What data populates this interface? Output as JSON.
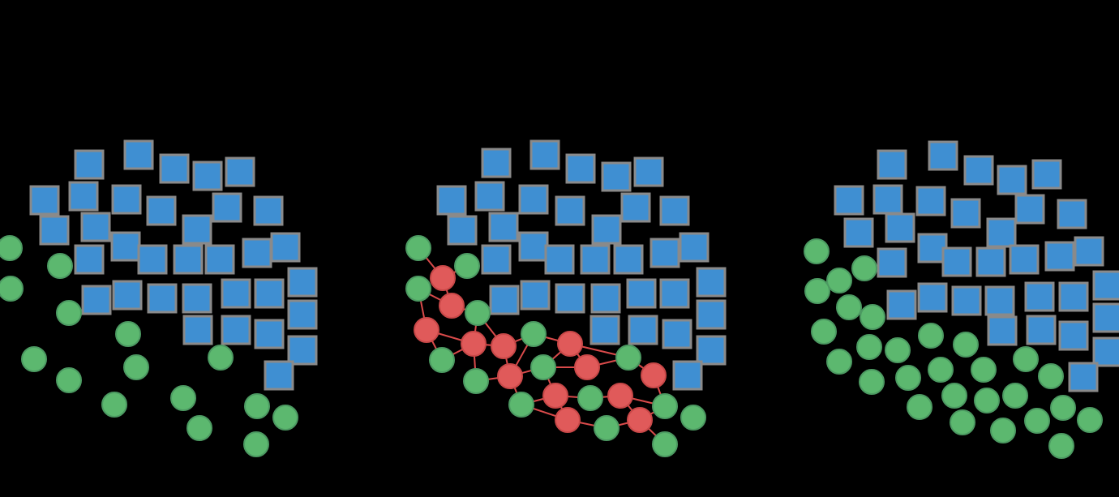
{
  "colors": {
    "background": "#000000",
    "square_fill": "#3f8fd2",
    "square_border": "#8a8a8a",
    "green_fill": "#5cb86f",
    "red_fill": "#e05a5a",
    "edge": "#d94a4a"
  },
  "panels": [
    {
      "name": "panel-left",
      "squares": [
        [
          110,
          203
        ],
        [
          171,
          191
        ],
        [
          215,
          208
        ],
        [
          256,
          217
        ],
        [
          296,
          212
        ],
        [
          55,
          247
        ],
        [
          103,
          242
        ],
        [
          156,
          246
        ],
        [
          199,
          260
        ],
        [
          280,
          256
        ],
        [
          331,
          260
        ],
        [
          67,
          284
        ],
        [
          118,
          280
        ],
        [
          243,
          283
        ],
        [
          155,
          304
        ],
        [
          110,
          320
        ],
        [
          188,
          320
        ],
        [
          232,
          320
        ],
        [
          271,
          320
        ],
        [
          317,
          312
        ],
        [
          352,
          305
        ],
        [
          373,
          348
        ],
        [
          119,
          370
        ],
        [
          157,
          364
        ],
        [
          200,
          368
        ],
        [
          243,
          368
        ],
        [
          291,
          362
        ],
        [
          332,
          362
        ],
        [
          373,
          388
        ],
        [
          244,
          407
        ],
        [
          291,
          407
        ],
        [
          332,
          412
        ],
        [
          373,
          432
        ],
        [
          344,
          463
        ]
      ],
      "greens": [
        [
          12,
          306
        ],
        [
          13,
          356
        ],
        [
          74,
          328
        ],
        [
          85,
          386
        ],
        [
          158,
          412
        ],
        [
          42,
          443
        ],
        [
          85,
          469
        ],
        [
          168,
          453
        ],
        [
          272,
          441
        ],
        [
          141,
          499
        ],
        [
          226,
          491
        ],
        [
          246,
          528
        ],
        [
          317,
          501
        ],
        [
          352,
          515
        ],
        [
          316,
          548
        ]
      ],
      "reds": [],
      "edges": []
    },
    {
      "name": "panel-middle",
      "squares": [
        [
          612,
          201
        ],
        [
          672,
          191
        ],
        [
          716,
          208
        ],
        [
          760,
          218
        ],
        [
          800,
          212
        ],
        [
          557,
          247
        ],
        [
          604,
          242
        ],
        [
          658,
          246
        ],
        [
          703,
          260
        ],
        [
          784,
          256
        ],
        [
          832,
          260
        ],
        [
          570,
          284
        ],
        [
          621,
          280
        ],
        [
          748,
          283
        ],
        [
          658,
          304
        ],
        [
          612,
          320
        ],
        [
          690,
          320
        ],
        [
          734,
          320
        ],
        [
          775,
          320
        ],
        [
          820,
          312
        ],
        [
          856,
          305
        ],
        [
          877,
          348
        ],
        [
          622,
          370
        ],
        [
          660,
          364
        ],
        [
          703,
          368
        ],
        [
          747,
          368
        ],
        [
          791,
          362
        ],
        [
          832,
          362
        ],
        [
          877,
          388
        ],
        [
          746,
          407
        ],
        [
          793,
          407
        ],
        [
          835,
          412
        ],
        [
          877,
          432
        ],
        [
          848,
          463
        ]
      ],
      "greens": [
        [
          516,
          306
        ],
        [
          576,
          328
        ],
        [
          516,
          356
        ],
        [
          589,
          386
        ],
        [
          545,
          444
        ],
        [
          658,
          412
        ],
        [
          587,
          470
        ],
        [
          670,
          453
        ],
        [
          775,
          441
        ],
        [
          643,
          499
        ],
        [
          728,
          491
        ],
        [
          748,
          528
        ],
        [
          820,
          501
        ],
        [
          855,
          515
        ],
        [
          820,
          548
        ]
      ],
      "reds": [
        [
          546,
          343
        ],
        [
          557,
          377
        ],
        [
          526,
          407
        ],
        [
          584,
          424
        ],
        [
          621,
          427
        ],
        [
          629,
          464
        ],
        [
          703,
          424
        ],
        [
          724,
          453
        ],
        [
          806,
          463
        ],
        [
          685,
          488
        ],
        [
          765,
          488
        ],
        [
          700,
          518
        ],
        [
          789,
          518
        ]
      ],
      "edges": [
        [
          [
            516,
            306
          ],
          [
            546,
            343
          ]
        ],
        [
          [
            546,
            343
          ],
          [
            576,
            328
          ]
        ],
        [
          [
            546,
            343
          ],
          [
            557,
            377
          ]
        ],
        [
          [
            516,
            356
          ],
          [
            557,
            377
          ]
        ],
        [
          [
            557,
            377
          ],
          [
            589,
            386
          ]
        ],
        [
          [
            526,
            407
          ],
          [
            516,
            356
          ]
        ],
        [
          [
            526,
            407
          ],
          [
            545,
            444
          ]
        ],
        [
          [
            526,
            407
          ],
          [
            584,
            424
          ]
        ],
        [
          [
            584,
            424
          ],
          [
            589,
            386
          ]
        ],
        [
          [
            584,
            424
          ],
          [
            621,
            427
          ]
        ],
        [
          [
            584,
            424
          ],
          [
            587,
            470
          ]
        ],
        [
          [
            584,
            424
          ],
          [
            545,
            444
          ]
        ],
        [
          [
            621,
            427
          ],
          [
            589,
            386
          ]
        ],
        [
          [
            621,
            427
          ],
          [
            658,
            412
          ]
        ],
        [
          [
            621,
            427
          ],
          [
            629,
            464
          ]
        ],
        [
          [
            629,
            464
          ],
          [
            587,
            470
          ]
        ],
        [
          [
            629,
            464
          ],
          [
            658,
            412
          ]
        ],
        [
          [
            629,
            464
          ],
          [
            643,
            499
          ]
        ],
        [
          [
            629,
            464
          ],
          [
            670,
            453
          ]
        ],
        [
          [
            703,
            424
          ],
          [
            658,
            412
          ]
        ],
        [
          [
            703,
            424
          ],
          [
            670,
            453
          ]
        ],
        [
          [
            703,
            424
          ],
          [
            724,
            453
          ]
        ],
        [
          [
            703,
            424
          ],
          [
            775,
            441
          ]
        ],
        [
          [
            724,
            453
          ],
          [
            775,
            441
          ]
        ],
        [
          [
            724,
            453
          ],
          [
            670,
            453
          ]
        ],
        [
          [
            806,
            463
          ],
          [
            775,
            441
          ]
        ],
        [
          [
            806,
            463
          ],
          [
            820,
            501
          ]
        ],
        [
          [
            685,
            488
          ],
          [
            643,
            499
          ]
        ],
        [
          [
            685,
            488
          ],
          [
            728,
            491
          ]
        ],
        [
          [
            685,
            488
          ],
          [
            700,
            518
          ]
        ],
        [
          [
            685,
            488
          ],
          [
            670,
            453
          ]
        ],
        [
          [
            765,
            488
          ],
          [
            728,
            491
          ]
        ],
        [
          [
            765,
            488
          ],
          [
            820,
            501
          ]
        ],
        [
          [
            765,
            488
          ],
          [
            789,
            518
          ]
        ],
        [
          [
            700,
            518
          ],
          [
            643,
            499
          ]
        ],
        [
          [
            700,
            518
          ],
          [
            748,
            528
          ]
        ],
        [
          [
            789,
            518
          ],
          [
            748,
            528
          ]
        ],
        [
          [
            789,
            518
          ],
          [
            820,
            548
          ]
        ],
        [
          [
            789,
            518
          ],
          [
            820,
            501
          ]
        ]
      ]
    },
    {
      "name": "panel-right",
      "squares": [
        [
          1100,
          203
        ],
        [
          1163,
          192
        ],
        [
          1207,
          210
        ],
        [
          1248,
          222
        ],
        [
          1291,
          215
        ],
        [
          1047,
          247
        ],
        [
          1095,
          246
        ],
        [
          1148,
          248
        ],
        [
          1191,
          263
        ],
        [
          1270,
          258
        ],
        [
          1322,
          264
        ],
        [
          1059,
          287
        ],
        [
          1110,
          281
        ],
        [
          1235,
          287
        ],
        [
          1150,
          306
        ],
        [
          1100,
          324
        ],
        [
          1180,
          323
        ],
        [
          1222,
          323
        ],
        [
          1263,
          320
        ],
        [
          1307,
          316
        ],
        [
          1343,
          310
        ],
        [
          1366,
          352
        ],
        [
          1112,
          376
        ],
        [
          1150,
          367
        ],
        [
          1192,
          371
        ],
        [
          1233,
          371
        ],
        [
          1282,
          366
        ],
        [
          1324,
          366
        ],
        [
          1366,
          392
        ],
        [
          1236,
          408
        ],
        [
          1284,
          407
        ],
        [
          1324,
          414
        ],
        [
          1366,
          434
        ],
        [
          1336,
          465
        ]
      ],
      "greens": [
        [
          1007,
          310
        ],
        [
          1035,
          346
        ],
        [
          1066,
          331
        ],
        [
          1008,
          359
        ],
        [
          1047,
          379
        ],
        [
          1076,
          391
        ],
        [
          1016,
          409
        ],
        [
          1148,
          414
        ],
        [
          1035,
          446
        ],
        [
          1072,
          428
        ],
        [
          1107,
          432
        ],
        [
          1191,
          425
        ],
        [
          1265,
          443
        ],
        [
          1075,
          471
        ],
        [
          1120,
          466
        ],
        [
          1160,
          456
        ],
        [
          1213,
          456
        ],
        [
          1296,
          464
        ],
        [
          1134,
          502
        ],
        [
          1177,
          488
        ],
        [
          1217,
          494
        ],
        [
          1252,
          488
        ],
        [
          1311,
          503
        ],
        [
          1344,
          518
        ],
        [
          1187,
          521
        ],
        [
          1237,
          531
        ],
        [
          1279,
          519
        ],
        [
          1309,
          550
        ]
      ],
      "reds": [],
      "edges": []
    }
  ]
}
